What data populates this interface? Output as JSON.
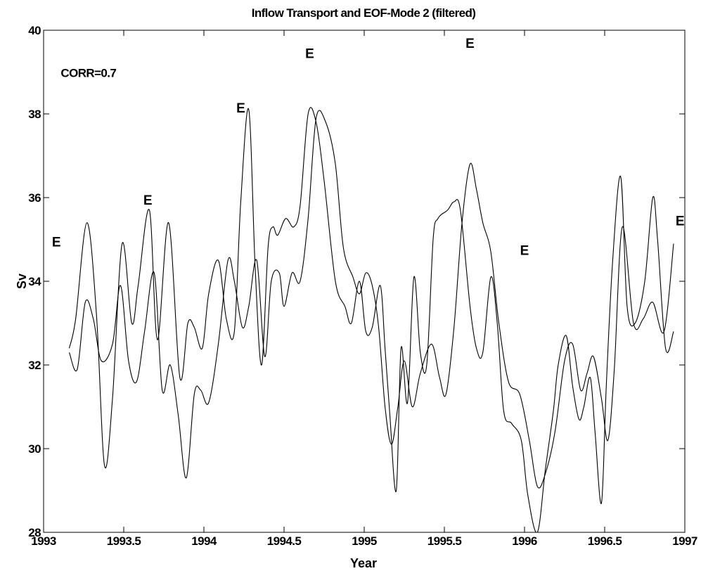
{
  "chart_data": {
    "type": "line",
    "title": "Inflow Transport and EOF-Mode 2 (filtered)",
    "xlabel": "Year",
    "ylabel": "Sv",
    "xlim": [
      1993,
      1997
    ],
    "ylim": [
      28,
      40
    ],
    "xticks": [
      1993,
      1993.5,
      1994,
      1994.5,
      1995,
      1995.5,
      1996,
      1996.5,
      1997
    ],
    "xtick_labels": [
      "1993",
      "1993.5",
      "1994",
      "1994.5",
      "1995",
      "1995.5",
      "1996",
      "1996.5",
      "1997"
    ],
    "yticks": [
      28,
      30,
      32,
      34,
      36,
      38,
      40
    ],
    "ytick_labels": [
      "28",
      "30",
      "32",
      "34",
      "36",
      "38",
      "40"
    ],
    "grid": false,
    "legend": null,
    "line_color": "#000000",
    "annotations": [
      {
        "text": "CORR=0.7",
        "x": 1993.28,
        "y": 39.0
      },
      {
        "text": "E",
        "x": 1993.08,
        "y": 34.95
      },
      {
        "text": "E",
        "x": 1993.65,
        "y": 35.95
      },
      {
        "text": "E",
        "x": 1994.23,
        "y": 38.15
      },
      {
        "text": "E",
        "x": 1994.66,
        "y": 39.45
      },
      {
        "text": "E",
        "x": 1995.66,
        "y": 39.7
      },
      {
        "text": "E",
        "x": 1996.0,
        "y": 34.75
      },
      {
        "text": "E",
        "x": 1996.97,
        "y": 35.45
      }
    ],
    "series": [
      {
        "x": [
          1993.16,
          1993.2,
          1993.27,
          1993.33,
          1993.38,
          1993.43,
          1993.49,
          1993.55,
          1993.59,
          1993.66,
          1993.71,
          1993.78,
          1993.85,
          1993.9,
          1993.94,
          1993.99,
          1994.03,
          1994.09,
          1994.14,
          1994.19,
          1994.23,
          1994.28,
          1994.32,
          1994.36,
          1994.4,
          1994.43,
          1994.46,
          1994.51,
          1994.56,
          1994.6,
          1994.65,
          1994.7,
          1994.75,
          1994.82,
          1994.88,
          1994.92,
          1994.97,
          1995.01,
          1995.05,
          1995.1,
          1995.13,
          1995.16,
          1995.2,
          1995.23,
          1995.27,
          1995.31,
          1995.35,
          1995.39,
          1995.43,
          1995.46,
          1995.52,
          1995.56,
          1995.6,
          1995.66,
          1995.7,
          1995.74,
          1995.79,
          1995.83,
          1995.87,
          1995.92,
          1995.98,
          1996.02,
          1996.08,
          1996.13,
          1996.18,
          1996.21,
          1996.26,
          1996.3,
          1996.34,
          1996.37,
          1996.41,
          1996.44,
          1996.48,
          1996.51,
          1996.55,
          1996.6,
          1996.64,
          1996.69,
          1996.75,
          1996.8,
          1996.83,
          1996.88,
          1996.93
        ],
        "values": [
          32.4,
          33.1,
          35.4,
          33.2,
          29.6,
          31.2,
          34.9,
          33.0,
          33.9,
          35.7,
          32.6,
          35.4,
          31.7,
          33.0,
          32.9,
          32.4,
          33.7,
          34.5,
          33.1,
          32.8,
          35.9,
          38.1,
          34.3,
          32.0,
          34.8,
          35.3,
          35.1,
          35.5,
          35.3,
          35.8,
          38.0,
          37.8,
          36.4,
          34.0,
          33.4,
          33.0,
          34.0,
          32.8,
          32.9,
          33.9,
          32.4,
          30.8,
          29.0,
          32.4,
          31.1,
          34.1,
          32.3,
          32.0,
          35.0,
          35.5,
          35.7,
          35.9,
          35.7,
          33.4,
          32.4,
          32.3,
          34.1,
          33.0,
          30.9,
          30.6,
          30.2,
          28.9,
          28.0,
          29.5,
          30.9,
          32.0,
          32.7,
          31.5,
          30.7,
          31.0,
          31.7,
          30.4,
          28.7,
          31.5,
          34.5,
          36.5,
          33.4,
          33.0,
          34.0,
          36.0,
          35.0,
          32.4,
          32.8
        ]
      },
      {
        "x": [
          1993.16,
          1993.21,
          1993.26,
          1993.31,
          1993.36,
          1993.43,
          1993.48,
          1993.53,
          1993.58,
          1993.63,
          1993.69,
          1993.74,
          1993.79,
          1993.84,
          1993.89,
          1993.94,
          1993.98,
          1994.03,
          1994.09,
          1994.15,
          1994.19,
          1994.24,
          1994.28,
          1994.33,
          1994.38,
          1994.42,
          1994.47,
          1994.5,
          1994.55,
          1994.6,
          1994.65,
          1994.7,
          1994.76,
          1994.82,
          1994.87,
          1994.93,
          1994.97,
          1995.01,
          1995.05,
          1995.09,
          1995.13,
          1995.17,
          1995.21,
          1995.25,
          1995.3,
          1995.35,
          1995.42,
          1995.47,
          1995.51,
          1995.56,
          1995.61,
          1995.66,
          1995.7,
          1995.74,
          1995.79,
          1995.84,
          1995.9,
          1995.97,
          1996.03,
          1996.08,
          1996.13,
          1996.19,
          1996.25,
          1996.3,
          1996.35,
          1996.39,
          1996.43,
          1996.48,
          1996.52,
          1996.56,
          1996.61,
          1996.68,
          1996.74,
          1996.8,
          1996.87,
          1996.93
        ],
        "values": [
          32.3,
          31.9,
          33.5,
          33.1,
          32.1,
          32.5,
          33.9,
          32.1,
          31.6,
          32.8,
          34.2,
          31.4,
          32.0,
          30.8,
          29.3,
          31.3,
          31.4,
          31.1,
          32.5,
          34.5,
          34.0,
          32.9,
          33.4,
          34.5,
          32.2,
          34.0,
          34.2,
          33.4,
          34.2,
          34.0,
          35.5,
          37.9,
          37.8,
          36.8,
          34.8,
          34.1,
          33.7,
          34.2,
          33.9,
          32.9,
          31.0,
          30.1,
          31.0,
          32.1,
          31.0,
          31.8,
          32.5,
          31.7,
          31.3,
          32.9,
          35.4,
          36.8,
          36.2,
          35.4,
          34.7,
          33.0,
          31.6,
          31.3,
          30.2,
          29.1,
          29.4,
          30.4,
          32.1,
          32.5,
          31.4,
          31.8,
          32.2,
          31.2,
          30.2,
          31.9,
          35.3,
          33.0,
          33.1,
          33.5,
          32.8,
          34.9
        ]
      }
    ]
  }
}
